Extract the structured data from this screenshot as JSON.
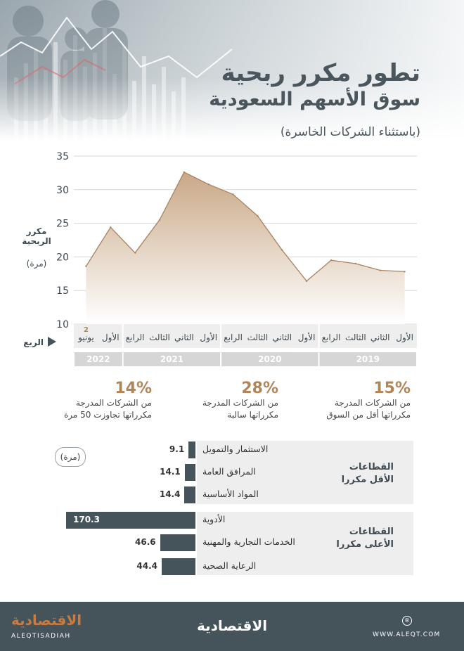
{
  "title": {
    "line1": "تطور مكرر ربحية",
    "line2": "سوق الأسهم السعودية",
    "note": "(باستثناء الشركات الخاسرة)"
  },
  "chart_data": {
    "type": "area",
    "ylabel": "مكرر الربحية",
    "yunit": "(مرة)",
    "xaxis_label": "الربع",
    "ylim": [
      10,
      35
    ],
    "yticks": [
      10,
      15,
      20,
      25,
      30,
      35
    ],
    "grid": true,
    "categories": [
      "الأول",
      "الثاني",
      "الثالث",
      "الرابع",
      "الأول",
      "الثاني",
      "الثالث",
      "الرابع",
      "الأول",
      "الثاني",
      "الثالث",
      "الرابع",
      "الأول",
      "يونيو"
    ],
    "category_badges": [
      "",
      "",
      "",
      "",
      "",
      "",
      "",
      "",
      "",
      "",
      "",
      "",
      "",
      "2"
    ],
    "year_groups": [
      {
        "label": "2019",
        "count": 4
      },
      {
        "label": "2020",
        "count": 4
      },
      {
        "label": "2021",
        "count": 4
      },
      {
        "label": "2022",
        "count": 2
      }
    ],
    "series": [
      {
        "values": [
          17.8,
          18.0,
          19.0,
          19.5,
          16.4,
          21.0,
          26.1,
          29.3,
          30.8,
          32.6,
          25.5,
          20.6,
          24.4,
          18.6
        ]
      }
    ]
  },
  "stats": [
    {
      "pct": "15%",
      "l1": "من الشركات المدرجة",
      "l2": "مكرراتها أقل من السوق"
    },
    {
      "pct": "28%",
      "l1": "من الشركات المدرجة",
      "l2": "مكرراتها سالبة"
    },
    {
      "pct": "14%",
      "l1": "من الشركات المدرجة",
      "l2": "مكرراتها تجاوزت 50 مرة"
    }
  ],
  "sectors": {
    "unit": "(مرة)",
    "low_title": [
      "القطاعات",
      "الأقل مكررا"
    ],
    "high_title": [
      "القطاعات",
      "الأعلى مكررا"
    ],
    "low": [
      {
        "name": "الاستثمار والتمويل",
        "value": 9.1,
        "label": "9.1"
      },
      {
        "name": "المرافق العامة",
        "value": 14.1,
        "label": "14.1"
      },
      {
        "name": "المواد الأساسية",
        "value": 14.4,
        "label": "14.4"
      }
    ],
    "high": [
      {
        "name": "الأدوية",
        "value": 170.3,
        "label": "170.3"
      },
      {
        "name": "الخدمات التجارية والمهنية",
        "value": 46.6,
        "label": "46.6"
      },
      {
        "name": "الرعاية الصحية",
        "value": 44.4,
        "label": "44.4"
      }
    ],
    "bar_color": "#45535b"
  },
  "footer": {
    "brand": "الاقتصادية",
    "brand_latin": "ALEQTISADIAH",
    "center_brand": "الاقتصادية",
    "website": "WWW.ALEQT.COM"
  },
  "colors": {
    "accent": "#b0855a",
    "dark": "#45535b",
    "area_top": "#c9a886"
  }
}
